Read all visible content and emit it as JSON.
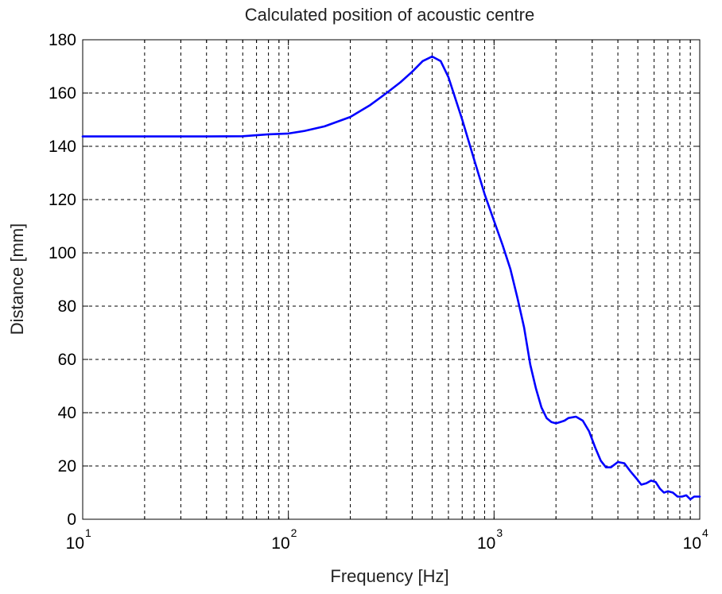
{
  "chart_data": {
    "type": "line",
    "title": "Calculated position of acoustic centre",
    "xlabel": "Frequency [Hz]",
    "ylabel": "Distance [mm]",
    "xscale": "log",
    "xlim": [
      10,
      10000
    ],
    "ylim": [
      0,
      180
    ],
    "grid": true,
    "grid_style": "dashed",
    "line_color": "#0000ff",
    "x_ticks": [
      {
        "base": "10",
        "exp": "1",
        "value": 10
      },
      {
        "base": "10",
        "exp": "2",
        "value": 100
      },
      {
        "base": "10",
        "exp": "3",
        "value": 1000
      },
      {
        "base": "10",
        "exp": "4",
        "value": 10000
      }
    ],
    "y_ticks": [
      {
        "label": "0",
        "value": 0
      },
      {
        "label": "20",
        "value": 20
      },
      {
        "label": "40",
        "value": 40
      },
      {
        "label": "60",
        "value": 60
      },
      {
        "label": "80",
        "value": 80
      },
      {
        "label": "100",
        "value": 100
      },
      {
        "label": "120",
        "value": 120
      },
      {
        "label": "140",
        "value": 140
      },
      {
        "label": "160",
        "value": 160
      },
      {
        "label": "180",
        "value": 180
      }
    ],
    "series": [
      {
        "x": [
          10,
          20,
          40,
          60,
          80,
          100,
          120,
          150,
          200,
          250,
          300,
          350,
          400,
          450,
          500,
          550,
          600,
          700,
          800,
          900,
          1000,
          1100,
          1200,
          1300,
          1400,
          1500,
          1600,
          1700,
          1800,
          1900,
          2000,
          2100,
          2200,
          2300,
          2500,
          2700,
          2900,
          3100,
          3300,
          3500,
          3700,
          4000,
          4300,
          4600,
          4900,
          5200,
          5500,
          5800,
          6100,
          6400,
          6700,
          7000,
          7400,
          7800,
          8200,
          8600,
          9000,
          9400,
          10000
        ],
        "y": [
          143.7,
          143.7,
          143.7,
          143.8,
          144.5,
          144.8,
          145.8,
          147.5,
          151,
          155.5,
          160,
          164,
          168,
          172,
          173.7,
          172,
          166,
          150,
          135,
          122,
          112,
          103,
          94,
          83,
          72,
          58,
          49,
          42,
          38,
          36.5,
          36,
          36.5,
          37,
          38,
          38.5,
          37,
          33,
          27,
          22,
          19.5,
          19.5,
          21.5,
          21,
          18,
          15.5,
          13,
          13.5,
          14.5,
          14,
          11.5,
          10,
          10.5,
          10,
          8.5,
          8.5,
          9,
          7.5,
          8.5,
          8.5
        ]
      }
    ]
  }
}
